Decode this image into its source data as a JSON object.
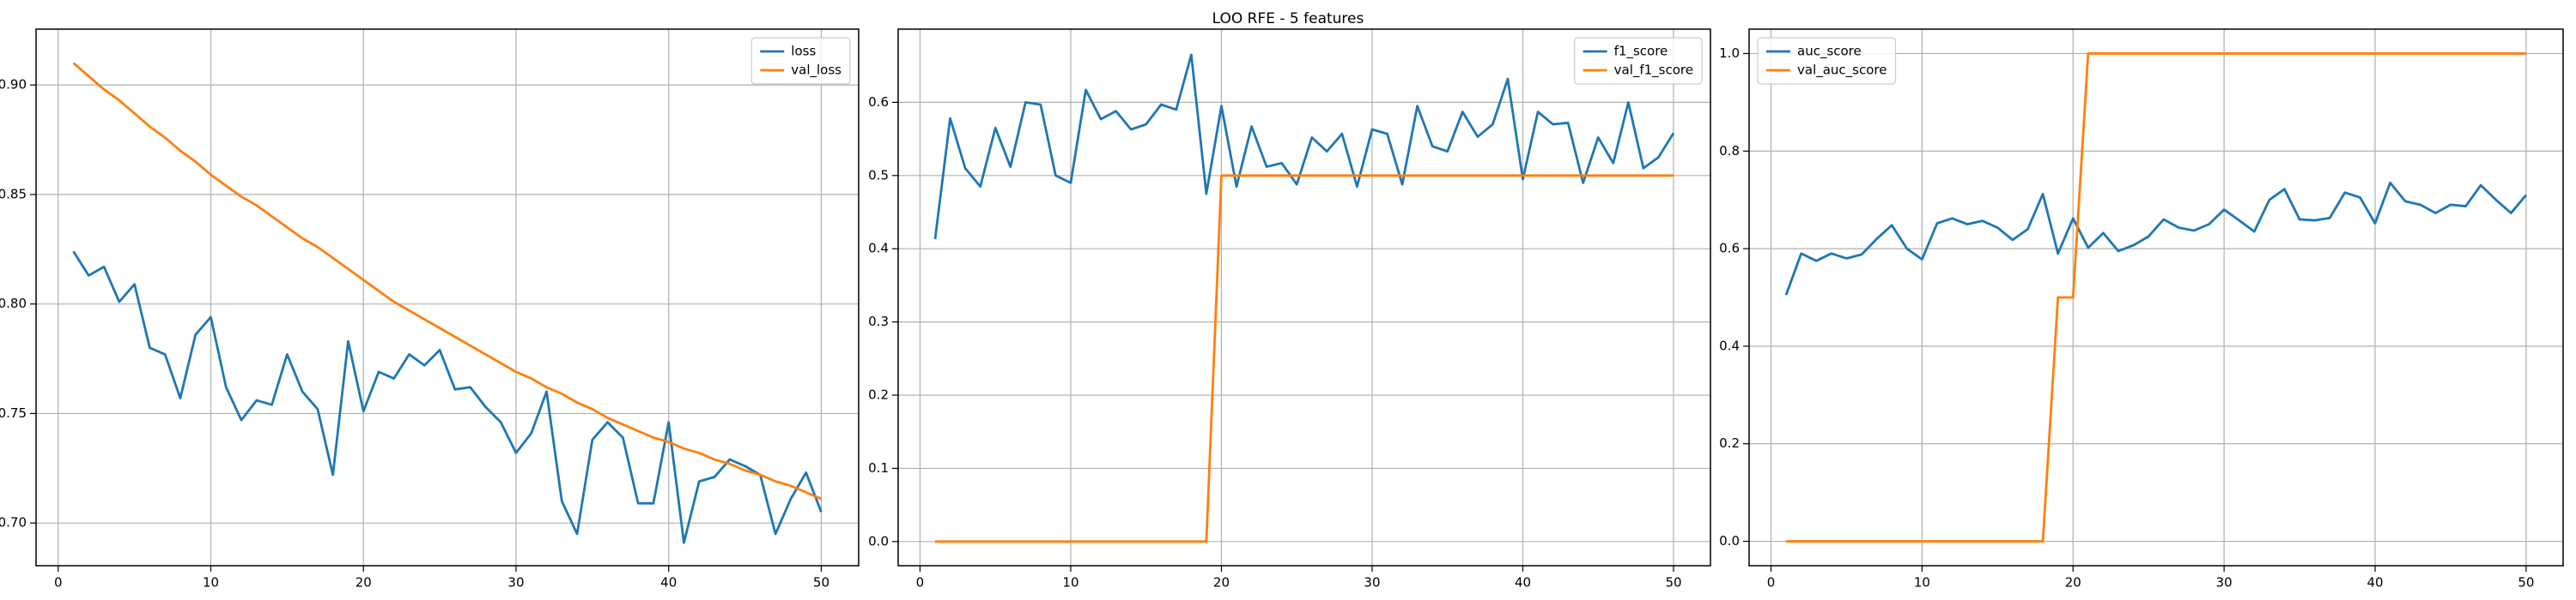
{
  "title": "LOO RFE - 5 features",
  "chart_data": [
    {
      "type": "line",
      "x": [
        1,
        2,
        3,
        4,
        5,
        6,
        7,
        8,
        9,
        10,
        11,
        12,
        13,
        14,
        15,
        16,
        17,
        18,
        19,
        20,
        21,
        22,
        23,
        24,
        25,
        26,
        27,
        28,
        29,
        30,
        31,
        32,
        33,
        34,
        35,
        36,
        37,
        38,
        39,
        40,
        41,
        42,
        43,
        44,
        45,
        46,
        47,
        48,
        49,
        50
      ],
      "series": [
        {
          "name": "loss",
          "color": "#1f77b4",
          "values": [
            0.824,
            0.813,
            0.817,
            0.801,
            0.809,
            0.78,
            0.777,
            0.757,
            0.786,
            0.794,
            0.762,
            0.747,
            0.756,
            0.754,
            0.777,
            0.76,
            0.752,
            0.722,
            0.783,
            0.751,
            0.769,
            0.766,
            0.777,
            0.772,
            0.779,
            0.761,
            0.762,
            0.753,
            0.746,
            0.732,
            0.741,
            0.76,
            0.71,
            0.695,
            0.738,
            0.746,
            0.739,
            0.709,
            0.709,
            0.746,
            0.691,
            0.719,
            0.721,
            0.729,
            0.726,
            0.722,
            0.695,
            0.711,
            0.723,
            0.705
          ]
        },
        {
          "name": "val_loss",
          "color": "#ff7f0e",
          "values": [
            0.91,
            0.904,
            0.898,
            0.893,
            0.887,
            0.881,
            0.876,
            0.87,
            0.865,
            0.859,
            0.854,
            0.849,
            0.845,
            0.84,
            0.835,
            0.83,
            0.826,
            0.821,
            0.816,
            0.811,
            0.806,
            0.801,
            0.797,
            0.793,
            0.789,
            0.785,
            0.781,
            0.777,
            0.773,
            0.769,
            0.766,
            0.762,
            0.759,
            0.755,
            0.752,
            0.748,
            0.745,
            0.742,
            0.739,
            0.737,
            0.734,
            0.732,
            0.729,
            0.727,
            0.724,
            0.722,
            0.719,
            0.717,
            0.714,
            0.711
          ]
        }
      ],
      "xlim": [
        -1.45,
        52.45
      ],
      "xticks": [
        0,
        10,
        20,
        30,
        40,
        50
      ],
      "ylim": [
        0.6805,
        0.9255
      ],
      "yticks": [
        {
          "value": 0.7,
          "label": "0.70"
        },
        {
          "value": 0.75,
          "label": "0.75"
        },
        {
          "value": 0.8,
          "label": "0.80"
        },
        {
          "value": 0.85,
          "label": "0.85"
        },
        {
          "value": 0.9,
          "label": "0.90"
        }
      ],
      "grid": true,
      "legend": "upper right"
    },
    {
      "type": "line",
      "x": [
        1,
        2,
        3,
        4,
        5,
        6,
        7,
        8,
        9,
        10,
        11,
        12,
        13,
        14,
        15,
        16,
        17,
        18,
        19,
        20,
        21,
        22,
        23,
        24,
        25,
        26,
        27,
        28,
        29,
        30,
        31,
        32,
        33,
        34,
        35,
        36,
        37,
        38,
        39,
        40,
        41,
        42,
        43,
        44,
        45,
        46,
        47,
        48,
        49,
        50
      ],
      "series": [
        {
          "name": "f1_score",
          "color": "#1f77b4",
          "values": [
            0.413,
            0.578,
            0.51,
            0.485,
            0.565,
            0.512,
            0.6,
            0.597,
            0.5,
            0.49,
            0.617,
            0.577,
            0.588,
            0.563,
            0.57,
            0.597,
            0.59,
            0.665,
            0.475,
            0.595,
            0.485,
            0.567,
            0.512,
            0.517,
            0.488,
            0.552,
            0.533,
            0.557,
            0.485,
            0.563,
            0.557,
            0.488,
            0.595,
            0.54,
            0.533,
            0.587,
            0.553,
            0.57,
            0.632,
            0.495,
            0.587,
            0.57,
            0.572,
            0.49,
            0.552,
            0.517,
            0.6,
            0.51,
            0.525,
            0.558
          ]
        },
        {
          "name": "val_f1_score",
          "color": "#ff7f0e",
          "values": [
            0,
            0,
            0,
            0,
            0,
            0,
            0,
            0,
            0,
            0,
            0,
            0,
            0,
            0,
            0,
            0,
            0,
            0,
            0,
            0.5,
            0.5,
            0.5,
            0.5,
            0.5,
            0.5,
            0.5,
            0.5,
            0.5,
            0.5,
            0.5,
            0.5,
            0.5,
            0.5,
            0.5,
            0.5,
            0.5,
            0.5,
            0.5,
            0.5,
            0.5,
            0.5,
            0.5,
            0.5,
            0.5,
            0.5,
            0.5,
            0.5,
            0.5,
            0.5,
            0.5
          ]
        }
      ],
      "xlim": [
        -1.45,
        52.45
      ],
      "xticks": [
        0,
        10,
        20,
        30,
        40,
        50
      ],
      "ylim": [
        -0.033,
        0.7
      ],
      "yticks": [
        {
          "value": 0.0,
          "label": "0.0"
        },
        {
          "value": 0.1,
          "label": "0.1"
        },
        {
          "value": 0.2,
          "label": "0.2"
        },
        {
          "value": 0.3,
          "label": "0.3"
        },
        {
          "value": 0.4,
          "label": "0.4"
        },
        {
          "value": 0.5,
          "label": "0.5"
        },
        {
          "value": 0.6,
          "label": "0.6"
        }
      ],
      "grid": true,
      "legend": "upper right"
    },
    {
      "type": "line",
      "x": [
        1,
        2,
        3,
        4,
        5,
        6,
        7,
        8,
        9,
        10,
        11,
        12,
        13,
        14,
        15,
        16,
        17,
        18,
        19,
        20,
        21,
        22,
        23,
        24,
        25,
        26,
        27,
        28,
        29,
        30,
        31,
        32,
        33,
        34,
        35,
        36,
        37,
        38,
        39,
        40,
        41,
        42,
        43,
        44,
        45,
        46,
        47,
        48,
        49,
        50
      ],
      "series": [
        {
          "name": "auc_score",
          "color": "#1f77b4",
          "values": [
            0.505,
            0.59,
            0.575,
            0.59,
            0.58,
            0.588,
            0.62,
            0.648,
            0.6,
            0.578,
            0.652,
            0.662,
            0.65,
            0.657,
            0.643,
            0.618,
            0.64,
            0.712,
            0.59,
            0.662,
            0.602,
            0.632,
            0.595,
            0.607,
            0.625,
            0.66,
            0.643,
            0.637,
            0.65,
            0.68,
            0.658,
            0.635,
            0.7,
            0.722,
            0.66,
            0.658,
            0.663,
            0.715,
            0.705,
            0.652,
            0.735,
            0.697,
            0.69,
            0.673,
            0.69,
            0.687,
            0.73,
            0.7,
            0.673,
            0.71
          ]
        },
        {
          "name": "val_auc_score",
          "color": "#ff7f0e",
          "values": [
            0,
            0,
            0,
            0,
            0,
            0,
            0,
            0,
            0,
            0,
            0,
            0,
            0,
            0,
            0,
            0,
            0,
            0,
            0.5,
            0.5,
            1,
            1,
            1,
            1,
            1,
            1,
            1,
            1,
            1,
            1,
            1,
            1,
            1,
            1,
            1,
            1,
            1,
            1,
            1,
            1,
            1,
            1,
            1,
            1,
            1,
            1,
            1,
            1,
            1,
            1
          ]
        }
      ],
      "xlim": [
        -1.45,
        52.45
      ],
      "xticks": [
        0,
        10,
        20,
        30,
        40,
        50
      ],
      "ylim": [
        -0.05,
        1.05
      ],
      "yticks": [
        {
          "value": 0.0,
          "label": "0.0"
        },
        {
          "value": 0.2,
          "label": "0.2"
        },
        {
          "value": 0.4,
          "label": "0.4"
        },
        {
          "value": 0.6,
          "label": "0.6"
        },
        {
          "value": 0.8,
          "label": "0.8"
        },
        {
          "value": 1.0,
          "label": "1.0"
        }
      ],
      "grid": true,
      "legend": "upper left"
    }
  ]
}
